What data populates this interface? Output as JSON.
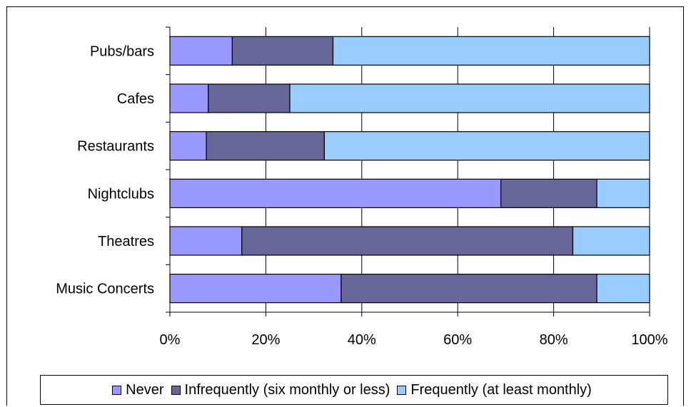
{
  "chart_data": {
    "type": "bar",
    "orientation": "horizontal",
    "stacked": "percent",
    "categories": [
      "Pubs/bars",
      "Cafes",
      "Restaurants",
      "Nightclubs",
      "Theatres",
      "Music Concerts"
    ],
    "series": [
      {
        "name": "Never",
        "color": "#9999ff",
        "values": [
          13,
          8,
          7.6,
          69,
          15,
          35.7
        ]
      },
      {
        "name": "Infrequently (six monthly or less)",
        "color": "#666699",
        "values": [
          21,
          17,
          24.6,
          20,
          69,
          53.3
        ]
      },
      {
        "name": "Frequently (at least monthly)",
        "color": "#99ccff",
        "values": [
          66,
          75,
          67.8,
          11,
          16,
          11
        ]
      }
    ],
    "x_ticks": [
      "0%",
      "20%",
      "40%",
      "60%",
      "80%",
      "100%"
    ],
    "xlim": [
      0,
      100
    ],
    "grid": "vertical",
    "legend_position": "bottom"
  }
}
